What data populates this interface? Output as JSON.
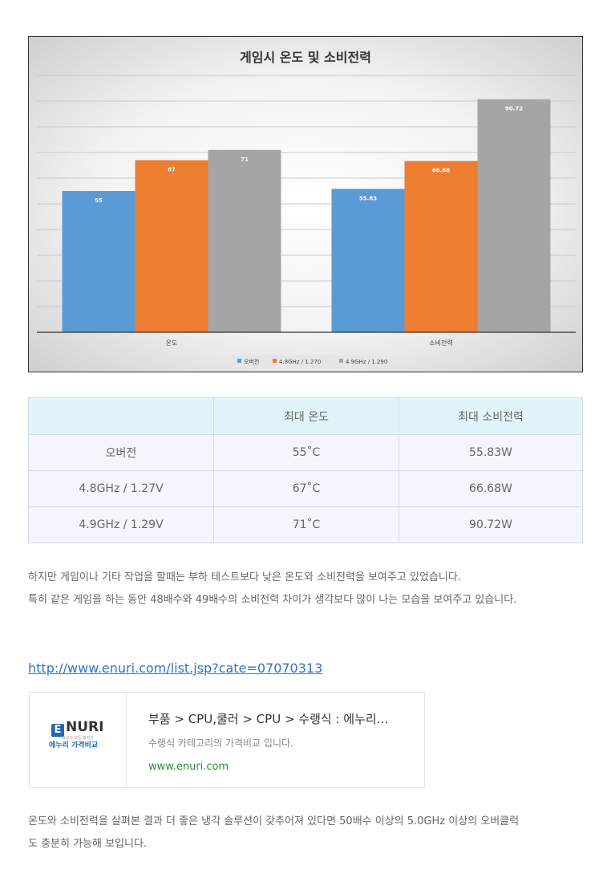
{
  "chart_data": {
    "type": "bar",
    "title": "게임시 온도 및 소비전력",
    "categories": [
      "온도",
      "소비전력"
    ],
    "series": [
      {
        "name": "오버전",
        "color": "#5b9bd5",
        "values": [
          55,
          55.83
        ],
        "labels": [
          "55",
          "55.83"
        ]
      },
      {
        "name": "4.8GHz / 1.270",
        "color": "#ed7d31",
        "values": [
          67,
          66.68
        ],
        "labels": [
          "67",
          "66.68"
        ]
      },
      {
        "name": "4.9GHz / 1.290",
        "color": "#a5a5a5",
        "values": [
          71,
          90.72
        ],
        "labels": [
          "71",
          "90.72"
        ]
      }
    ],
    "ylim": [
      0,
      100
    ],
    "grid": true,
    "legend": "bottom"
  },
  "table": {
    "headers": [
      "",
      "최대 온도",
      "최대 소비전력"
    ],
    "rows": [
      [
        "오버전",
        "55˚C",
        "55.83W"
      ],
      [
        "4.8GHz / 1.27V",
        "67˚C",
        "66.68W"
      ],
      [
        "4.9GHz / 1.29V",
        "71˚C",
        "90.72W"
      ]
    ]
  },
  "paragraph1": {
    "line1": "하지만 게임이나 기타 작업을 할때는 부하 테스트보다 낮은 온도와 소비전력을 보여주고 있었습니다.",
    "line2": "특히 같은 게임을 하는 동안 48배수와 49배수의 소비전력 차이가 생각보다 많이 나는 모습을 보여주고 있습니다."
  },
  "link": {
    "text": "http://www.enuri.com/list.jsp?cate=07070313"
  },
  "card": {
    "logo_text": "NURI",
    "logo_letter": "E",
    "logo_tagline": "세상의 모든 최저가",
    "logo_sub": "에누리 가격비교",
    "title": "부품 > CPU,쿨러 > CPU > 수랭식 : 에누리…",
    "description": "수랭식 카테고리의 가격비교 입니다.",
    "url": "www.enuri.com"
  },
  "paragraph2": {
    "line1": "온도와 소비전력을 살펴본 결과 더 좋은 냉각 솔루션이 갖추어져 있다면 50배수 이상의  5.0GHz 이상의 오버클럭",
    "line2": "도 충분히 가능해 보입니다."
  }
}
